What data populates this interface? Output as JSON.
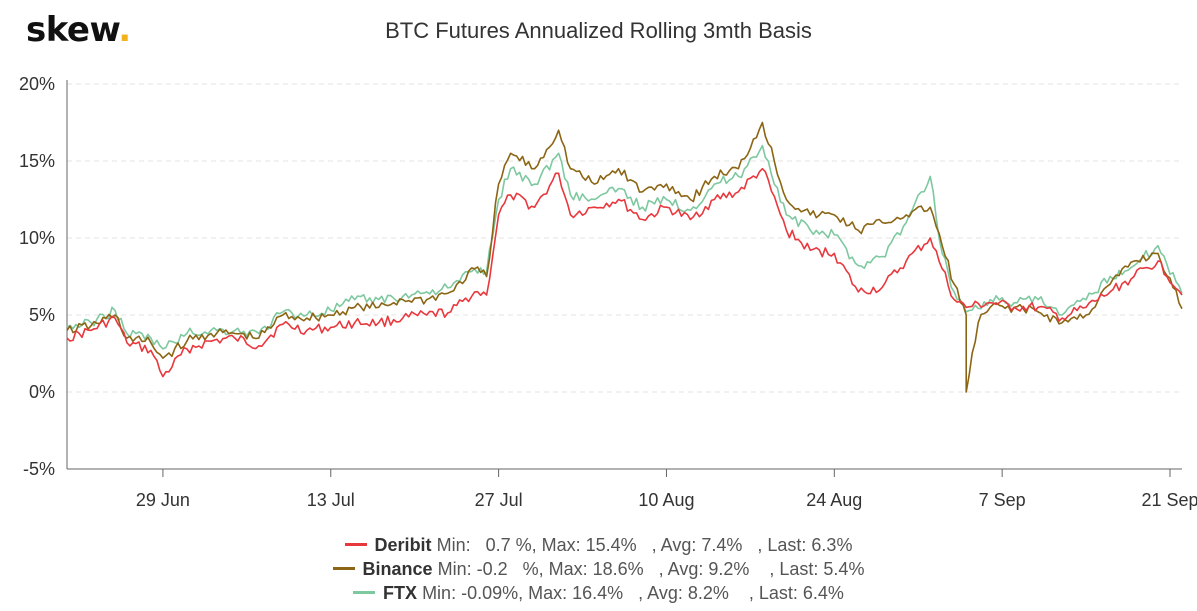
{
  "logo": {
    "text": "skew",
    "dot": "."
  },
  "chart_data": {
    "type": "line",
    "title": "BTC Futures Annualized Rolling 3mth Basis",
    "x_start": "2020-06-21",
    "x_end": "2020-09-22",
    "x_ticks": [
      "29 Jun",
      "13 Jul",
      "27 Jul",
      "10 Aug",
      "24 Aug",
      "7 Sep",
      "21 Sep"
    ],
    "x_tick_dates": [
      "2020-06-29",
      "2020-07-13",
      "2020-07-27",
      "2020-08-10",
      "2020-08-24",
      "2020-09-07",
      "2020-09-21"
    ],
    "ylim": [
      -5,
      20
    ],
    "y_ticks": [
      "20%",
      "15%",
      "10%",
      "5%",
      "0%",
      "-5%"
    ],
    "y_tick_values": [
      20,
      15,
      10,
      5,
      0,
      -5
    ],
    "grid": true,
    "legend_position": "bottom-center",
    "series": [
      {
        "name": "Deribit",
        "color": "#e8383d",
        "stats": "Min:   0.7 %, Max: 15.4%   , Avg: 7.4%   , Last: 6.3%",
        "points": [
          [
            "2020-06-21",
            3.5
          ],
          [
            "2020-06-23",
            4.0
          ],
          [
            "2020-06-25",
            4.8
          ],
          [
            "2020-06-26",
            3.2
          ],
          [
            "2020-06-28",
            2.7
          ],
          [
            "2020-06-29",
            1.0
          ],
          [
            "2020-07-01",
            2.8
          ],
          [
            "2020-07-03",
            3.3
          ],
          [
            "2020-07-05",
            3.5
          ],
          [
            "2020-07-07",
            3.0
          ],
          [
            "2020-07-09",
            4.4
          ],
          [
            "2020-07-11",
            4.0
          ],
          [
            "2020-07-13",
            4.2
          ],
          [
            "2020-07-15",
            4.5
          ],
          [
            "2020-07-17",
            4.5
          ],
          [
            "2020-07-19",
            4.8
          ],
          [
            "2020-07-21",
            5.0
          ],
          [
            "2020-07-23",
            5.2
          ],
          [
            "2020-07-25",
            6.5
          ],
          [
            "2020-07-26",
            6.3
          ],
          [
            "2020-07-27",
            11.5
          ],
          [
            "2020-07-28",
            12.8
          ],
          [
            "2020-07-30",
            12.0
          ],
          [
            "2020-08-01",
            14.2
          ],
          [
            "2020-08-02",
            11.5
          ],
          [
            "2020-08-04",
            12.0
          ],
          [
            "2020-08-06",
            12.5
          ],
          [
            "2020-08-08",
            11.2
          ],
          [
            "2020-08-10",
            12.0
          ],
          [
            "2020-08-12",
            11.2
          ],
          [
            "2020-08-14",
            12.5
          ],
          [
            "2020-08-16",
            13.0
          ],
          [
            "2020-08-18",
            14.5
          ],
          [
            "2020-08-20",
            10.5
          ],
          [
            "2020-08-22",
            9.2
          ],
          [
            "2020-08-24",
            9.0
          ],
          [
            "2020-08-26",
            6.5
          ],
          [
            "2020-08-28",
            6.8
          ],
          [
            "2020-08-30",
            8.5
          ],
          [
            "2020-09-01",
            10.0
          ],
          [
            "2020-09-02",
            8.0
          ],
          [
            "2020-09-03",
            6.0
          ],
          [
            "2020-09-04",
            5.5
          ],
          [
            "2020-09-06",
            5.8
          ],
          [
            "2020-09-08",
            5.5
          ],
          [
            "2020-09-10",
            5.5
          ],
          [
            "2020-09-12",
            4.8
          ],
          [
            "2020-09-14",
            5.5
          ],
          [
            "2020-09-16",
            6.5
          ],
          [
            "2020-09-18",
            7.5
          ],
          [
            "2020-09-20",
            8.5
          ],
          [
            "2020-09-22",
            6.3
          ]
        ]
      },
      {
        "name": "Binance",
        "color": "#8b6513",
        "stats": "Min: -0.2   %, Max: 18.6%   , Avg: 9.2%    , Last: 5.4%",
        "points": [
          [
            "2020-06-21",
            4.0
          ],
          [
            "2020-06-23",
            4.3
          ],
          [
            "2020-06-25",
            5.0
          ],
          [
            "2020-06-26",
            3.5
          ],
          [
            "2020-06-28",
            3.2
          ],
          [
            "2020-06-29",
            2.2
          ],
          [
            "2020-07-01",
            3.3
          ],
          [
            "2020-07-03",
            3.8
          ],
          [
            "2020-07-05",
            3.8
          ],
          [
            "2020-07-07",
            3.5
          ],
          [
            "2020-07-09",
            5.0
          ],
          [
            "2020-07-11",
            4.8
          ],
          [
            "2020-07-13",
            5.0
          ],
          [
            "2020-07-15",
            5.5
          ],
          [
            "2020-07-17",
            5.5
          ],
          [
            "2020-07-19",
            6.0
          ],
          [
            "2020-07-21",
            6.0
          ],
          [
            "2020-07-23",
            6.5
          ],
          [
            "2020-07-25",
            8.0
          ],
          [
            "2020-07-26",
            7.5
          ],
          [
            "2020-07-27",
            13.5
          ],
          [
            "2020-07-28",
            15.5
          ],
          [
            "2020-07-30",
            14.5
          ],
          [
            "2020-08-01",
            17.0
          ],
          [
            "2020-08-02",
            14.5
          ],
          [
            "2020-08-04",
            13.5
          ],
          [
            "2020-08-06",
            14.5
          ],
          [
            "2020-08-08",
            13.0
          ],
          [
            "2020-08-10",
            13.5
          ],
          [
            "2020-08-12",
            12.5
          ],
          [
            "2020-08-14",
            14.0
          ],
          [
            "2020-08-16",
            14.5
          ],
          [
            "2020-08-18",
            17.5
          ],
          [
            "2020-08-20",
            12.5
          ],
          [
            "2020-08-22",
            11.5
          ],
          [
            "2020-08-24",
            11.5
          ],
          [
            "2020-08-26",
            10.5
          ],
          [
            "2020-08-28",
            11.0
          ],
          [
            "2020-08-30",
            11.5
          ],
          [
            "2020-09-01",
            12.0
          ],
          [
            "2020-09-02",
            9.5
          ],
          [
            "2020-09-03",
            7.0
          ],
          [
            "2020-09-04",
            5.0
          ],
          [
            "2020-09-04",
            0.0
          ],
          [
            "2020-09-05",
            4.5
          ],
          [
            "2020-09-06",
            5.5
          ],
          [
            "2020-09-08",
            5.5
          ],
          [
            "2020-09-10",
            5.2
          ],
          [
            "2020-09-12",
            4.5
          ],
          [
            "2020-09-14",
            5.0
          ],
          [
            "2020-09-16",
            7.0
          ],
          [
            "2020-09-18",
            8.5
          ],
          [
            "2020-09-20",
            9.0
          ],
          [
            "2020-09-22",
            5.4
          ]
        ]
      },
      {
        "name": "FTX",
        "color": "#7ec8a0",
        "stats": "Min: -0.09%, Max: 16.4%   , Avg: 8.2%    , Last: 6.4%",
        "points": [
          [
            "2020-06-21",
            4.2
          ],
          [
            "2020-06-23",
            4.5
          ],
          [
            "2020-06-25",
            5.3
          ],
          [
            "2020-06-26",
            3.8
          ],
          [
            "2020-06-28",
            3.5
          ],
          [
            "2020-06-29",
            2.8
          ],
          [
            "2020-07-01",
            3.8
          ],
          [
            "2020-07-03",
            4.0
          ],
          [
            "2020-07-05",
            4.0
          ],
          [
            "2020-07-07",
            3.8
          ],
          [
            "2020-07-09",
            5.2
          ],
          [
            "2020-07-11",
            5.0
          ],
          [
            "2020-07-13",
            5.3
          ],
          [
            "2020-07-15",
            6.0
          ],
          [
            "2020-07-17",
            6.0
          ],
          [
            "2020-07-19",
            6.2
          ],
          [
            "2020-07-21",
            6.5
          ],
          [
            "2020-07-23",
            6.8
          ],
          [
            "2020-07-25",
            8.0
          ],
          [
            "2020-07-26",
            7.8
          ],
          [
            "2020-07-27",
            12.5
          ],
          [
            "2020-07-28",
            14.5
          ],
          [
            "2020-07-30",
            13.5
          ],
          [
            "2020-08-01",
            15.5
          ],
          [
            "2020-08-02",
            12.8
          ],
          [
            "2020-08-04",
            12.5
          ],
          [
            "2020-08-06",
            13.2
          ],
          [
            "2020-08-08",
            12.0
          ],
          [
            "2020-08-10",
            12.5
          ],
          [
            "2020-08-12",
            11.8
          ],
          [
            "2020-08-14",
            13.5
          ],
          [
            "2020-08-16",
            14.0
          ],
          [
            "2020-08-18",
            16.0
          ],
          [
            "2020-08-20",
            11.5
          ],
          [
            "2020-08-22",
            10.5
          ],
          [
            "2020-08-24",
            10.2
          ],
          [
            "2020-08-26",
            8.2
          ],
          [
            "2020-08-28",
            8.8
          ],
          [
            "2020-08-30",
            11.0
          ],
          [
            "2020-09-01",
            14.0
          ],
          [
            "2020-09-02",
            9.0
          ],
          [
            "2020-09-03",
            6.5
          ],
          [
            "2020-09-04",
            5.2
          ],
          [
            "2020-09-06",
            6.0
          ],
          [
            "2020-09-08",
            5.8
          ],
          [
            "2020-09-10",
            6.0
          ],
          [
            "2020-09-12",
            5.0
          ],
          [
            "2020-09-14",
            6.0
          ],
          [
            "2020-09-16",
            7.5
          ],
          [
            "2020-09-18",
            8.2
          ],
          [
            "2020-09-20",
            9.5
          ],
          [
            "2020-09-22",
            6.4
          ]
        ]
      }
    ]
  }
}
